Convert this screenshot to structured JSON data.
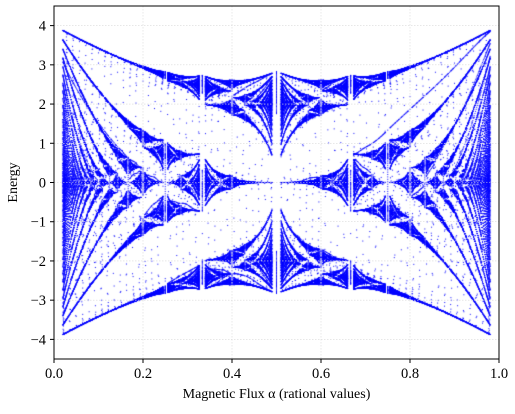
{
  "chart_data": {
    "type": "scatter",
    "title": "",
    "xlabel": "Magnetic Flux α (rational values)",
    "ylabel": "Energy",
    "xlim": [
      0.0,
      1.0
    ],
    "ylim": [
      -4.5,
      4.5
    ],
    "xticks": [
      0.0,
      0.2,
      0.4,
      0.6,
      0.8,
      1.0
    ],
    "xtick_labels": [
      "0.0",
      "0.2",
      "0.4",
      "0.6",
      "0.8",
      "1.0"
    ],
    "yticks": [
      -4,
      -3,
      -2,
      -1,
      0,
      1,
      2,
      3,
      4
    ],
    "ytick_labels": [
      "−4",
      "−3",
      "−2",
      "−1",
      "0",
      "1",
      "2",
      "3",
      "4"
    ],
    "grid": true,
    "legend": "none",
    "marker_color": "#0000ff",
    "grid_color": "#d9d9d9",
    "x_data_range": [
      0.02,
      0.98
    ],
    "max_denominator": 50,
    "energy_extent": [
      -3.9,
      3.9
    ],
    "series": [
      {
        "description": "Hofstadter butterfly: energy eigenvalues of the Harper equation for rational flux alpha = p/q (q ≤ 50)"
      }
    ]
  }
}
